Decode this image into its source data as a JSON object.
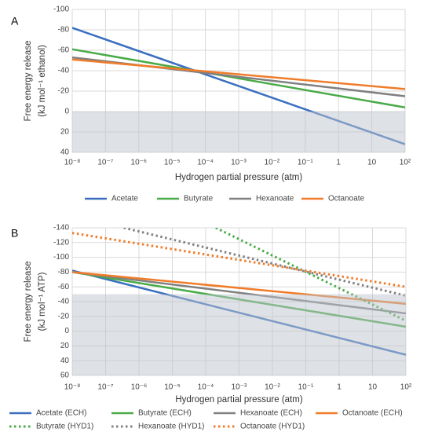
{
  "chart_data": [
    {
      "type": "line",
      "panel_label": "A",
      "y_label": [
        "Free energy release",
        "(kJ mol⁻¹ ethanol)"
      ],
      "x_label": "Hydrogen partial pressure (atm)",
      "log_x": true,
      "y_inverted": true,
      "grid": true,
      "shaded_region": [
        0,
        40
      ],
      "xlim": [
        1e-08,
        100
      ],
      "xticks": [
        {
          "value": 1e-08,
          "label": "10⁻⁸"
        },
        {
          "value": 1e-07,
          "label": "10⁻⁷"
        },
        {
          "value": 1e-06,
          "label": "10⁻⁶"
        },
        {
          "value": 1e-05,
          "label": "10⁻⁵"
        },
        {
          "value": 0.0001,
          "label": "10⁻⁴"
        },
        {
          "value": 0.001,
          "label": "10⁻³"
        },
        {
          "value": 0.01,
          "label": "10⁻²"
        },
        {
          "value": 0.1,
          "label": "10⁻¹"
        },
        1,
        10,
        {
          "value": 100,
          "label": "10²"
        }
      ],
      "ylim": [
        -100,
        40
      ],
      "yticks": [
        -100,
        -80,
        -60,
        -40,
        -20,
        0,
        20,
        40
      ],
      "series": [
        {
          "name": "Acetate",
          "color": "#3a6fc0",
          "style": "solid",
          "x": [
            1e-08,
            100
          ],
          "values": [
            -82,
            32
          ]
        },
        {
          "name": "Butyrate",
          "color": "#4aab48",
          "style": "solid",
          "x": [
            1e-08,
            100
          ],
          "values": [
            -61,
            -4
          ]
        },
        {
          "name": "Hexanoate",
          "color": "#808080",
          "style": "solid",
          "x": [
            1e-08,
            100
          ],
          "values": [
            -53,
            -15
          ]
        },
        {
          "name": "Octanoate",
          "color": "#f07c2a",
          "style": "solid",
          "x": [
            1e-08,
            100
          ],
          "values": [
            -51,
            -22
          ]
        }
      ]
    },
    {
      "type": "line",
      "panel_label": "B",
      "y_label": [
        "Free energy release",
        "(kJ mol⁻¹ ATP)"
      ],
      "x_label": "Hydrogen partial pressure (atm)",
      "log_x": true,
      "y_inverted": true,
      "grid": true,
      "shaded_region": [
        -50,
        60
      ],
      "xlim": [
        1e-08,
        100
      ],
      "xticks": [
        {
          "value": 1e-08,
          "label": "10⁻⁸"
        },
        {
          "value": 1e-07,
          "label": "10⁻⁷"
        },
        {
          "value": 1e-06,
          "label": "10⁻⁶"
        },
        {
          "value": 1e-05,
          "label": "10⁻⁵"
        },
        {
          "value": 0.0001,
          "label": "10⁻⁴"
        },
        {
          "value": 0.001,
          "label": "10⁻³"
        },
        {
          "value": 0.01,
          "label": "10⁻²"
        },
        {
          "value": 0.1,
          "label": "10⁻¹"
        },
        1,
        10,
        {
          "value": 100,
          "label": "10²"
        }
      ],
      "ylim": [
        -140,
        60
      ],
      "yticks": [
        -140,
        -120,
        -100,
        -80,
        -60,
        -40,
        -20,
        0,
        20,
        40,
        60
      ],
      "series": [
        {
          "name": "Acetate (ECH)",
          "color": "#3a6fc0",
          "style": "solid",
          "x": [
            1e-08,
            100
          ],
          "values": [
            -82,
            32
          ]
        },
        {
          "name": "Butyrate (ECH)",
          "color": "#4aab48",
          "style": "solid",
          "x": [
            1e-08,
            100
          ],
          "values": [
            -80,
            -6
          ]
        },
        {
          "name": "Hexanoate (ECH)",
          "color": "#808080",
          "style": "solid",
          "x": [
            1e-08,
            100
          ],
          "values": [
            -80,
            -24
          ]
        },
        {
          "name": "Octanoate (ECH)",
          "color": "#f07c2a",
          "style": "solid",
          "x": [
            1e-08,
            100
          ],
          "values": [
            -80,
            -37
          ]
        },
        {
          "name": "Butyrate (HYD1)",
          "color": "#4aab48",
          "style": "dotted",
          "x": [
            0.0002,
            100
          ],
          "values": [
            -140,
            -14
          ]
        },
        {
          "name": "Hexanoate (HYD1)",
          "color": "#808080",
          "style": "dotted",
          "x": [
            3.5e-07,
            100
          ],
          "values": [
            -140,
            -48
          ]
        },
        {
          "name": "Octanoate (HYD1)",
          "color": "#f07c2a",
          "style": "dotted",
          "x": [
            1e-08,
            100
          ],
          "values": [
            -133,
            -60
          ]
        }
      ]
    }
  ]
}
